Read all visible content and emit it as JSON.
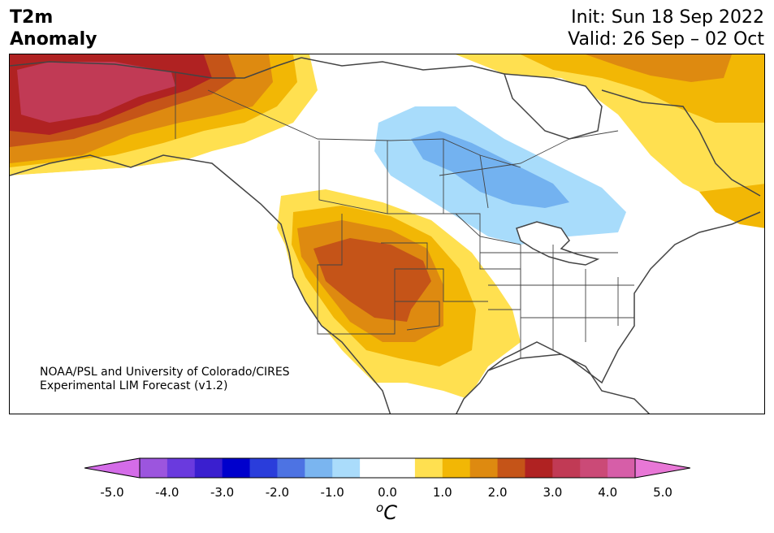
{
  "header": {
    "title_line1": "T2m",
    "title_line2": "Anomaly",
    "init_text": "Init: Sun 18 Sep 2022",
    "valid_text": "Valid: 26 Sep – 02 Oct"
  },
  "map": {
    "credit_line1": "NOAA/PSL and University of Colorado/CIRES",
    "credit_line2": "Experimental LIM Forecast (v1.2)",
    "colors": {
      "warm_1": "#ffe050",
      "warm_2": "#f2b705",
      "warm_3": "#de8a10",
      "warm_4": "#c55418",
      "warm_5": "#b02222",
      "warm_6": "#c13a55",
      "cool_1": "#a8dcfb",
      "cool_2": "#73b2f0",
      "land_line": "#444444"
    }
  },
  "colorbar": {
    "min_color": "#d46ce8",
    "max_color": "#e877d6",
    "bins": [
      "#d46ce8",
      "#9c55de",
      "#6a3ade",
      "#3a1fcf",
      "#0000cc",
      "#2a3ddb",
      "#4d73e3",
      "#7ab5f0",
      "#aadcfb",
      "#ffffff",
      "#ffffff",
      "#ffe050",
      "#f2b705",
      "#de8a10",
      "#c55418",
      "#b02222",
      "#c13a55",
      "#cb4a77",
      "#d65ea8",
      "#e877d6"
    ],
    "ticks": [
      "-5.0",
      "-4.0",
      "-3.0",
      "-2.0",
      "-1.0",
      "0.0",
      "1.0",
      "2.0",
      "3.0",
      "4.0",
      "5.0"
    ],
    "unit_symbol": "o",
    "unit_letter": "C"
  }
}
